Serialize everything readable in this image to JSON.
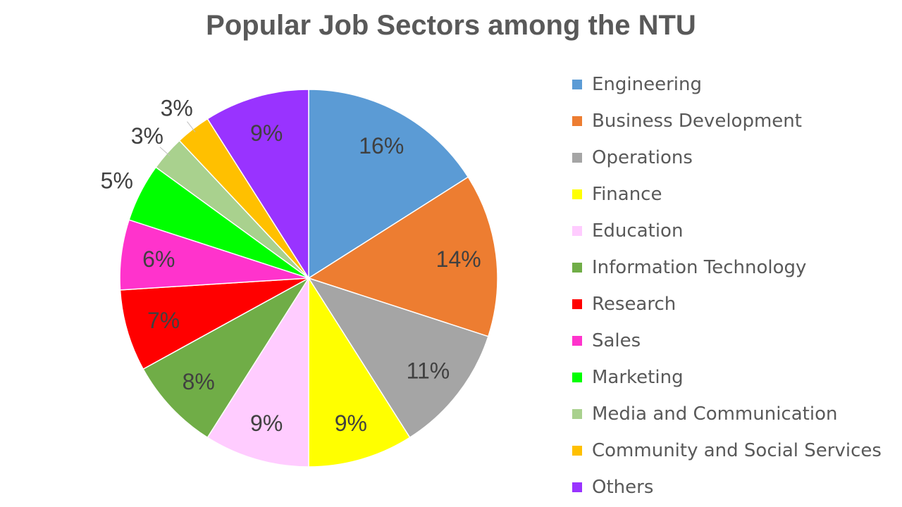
{
  "chart_data": {
    "type": "pie",
    "title": "Popular Job Sectors among the NTU",
    "start_angle": "top",
    "direction": "clockwise",
    "legend_position": "right",
    "slices": [
      {
        "label": "Engineering",
        "value": 16,
        "color": "#5B9BD5"
      },
      {
        "label": "Business Development",
        "value": 14,
        "color": "#ED7D31"
      },
      {
        "label": "Operations",
        "value": 11,
        "color": "#A5A5A5"
      },
      {
        "label": "Finance",
        "value": 9,
        "color": "#FFFF00"
      },
      {
        "label": "Education",
        "value": 9,
        "color": "#FFCCFF"
      },
      {
        "label": "Information Technology",
        "value": 8,
        "color": "#70AD47"
      },
      {
        "label": "Research",
        "value": 7,
        "color": "#FF0000"
      },
      {
        "label": "Sales",
        "value": 6,
        "color": "#FF33CC"
      },
      {
        "label": "Marketing",
        "value": 5,
        "color": "#00FF00"
      },
      {
        "label": "Media and Communication",
        "value": 3,
        "color": "#A9D18E"
      },
      {
        "label": "Community and Social Services",
        "value": 3,
        "color": "#FFC000"
      },
      {
        "label": "Others",
        "value": 9,
        "color": "#9933FF"
      }
    ]
  }
}
